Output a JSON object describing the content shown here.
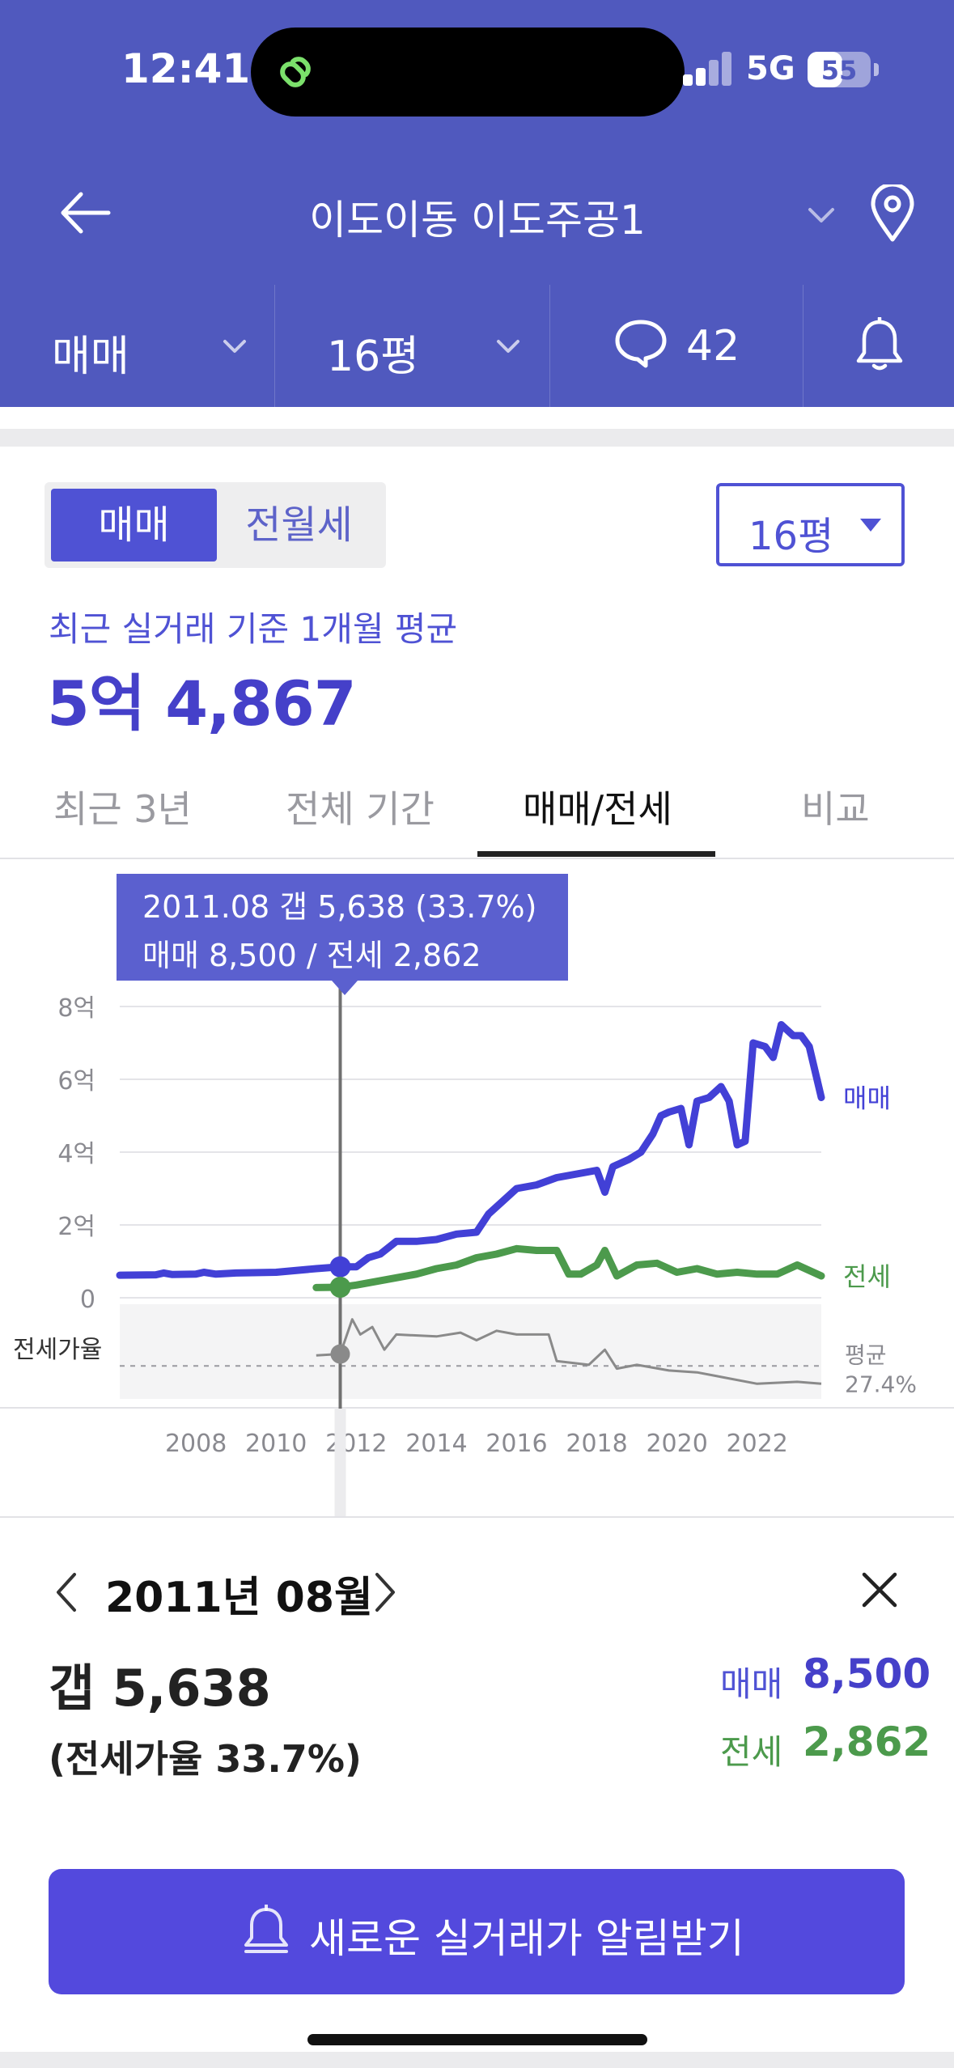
{
  "status_bar": {
    "time": "12:41",
    "network": "5G",
    "battery": "55"
  },
  "header": {
    "title": "이도이동 이도주공1"
  },
  "sub_bar": {
    "trade_type": "매매",
    "size": "16평",
    "comment_count": "42"
  },
  "summary": {
    "toggle": {
      "active": "매매",
      "inactive": "전월세"
    },
    "size_select": "16평",
    "recent_label": "최근 실거래 기준 1개월 평균",
    "recent_price": "5억 4,867"
  },
  "tabs": [
    {
      "label": "최근 3년"
    },
    {
      "label": "전체 기간"
    },
    {
      "label": "매매/전세"
    },
    {
      "label": "비교"
    }
  ],
  "tooltip": {
    "line1": "2011.08  갭 5,638 (33.7%)",
    "line2": "매매 8,500 / 전세 2,862"
  },
  "chart_data": {
    "type": "line",
    "x_ticks": [
      "2008",
      "2010",
      "2012",
      "2014",
      "2016",
      "2018",
      "2020",
      "2022"
    ],
    "y_ticks": [
      "8억",
      "6억",
      "4억",
      "2억",
      "0"
    ],
    "ylim": [
      0,
      8
    ],
    "xlim": [
      2006.1,
      2023.6
    ],
    "ratio_label": "전세가율",
    "avg_label": "평균",
    "avg_value": "27.4%",
    "avg_ratio": 27.4,
    "selected_x": 2011.6,
    "series": [
      {
        "name": "매매",
        "color": "#4240d6",
        "points": [
          [
            2006.1,
            0.62
          ],
          [
            2007.0,
            0.63
          ],
          [
            2007.2,
            0.68
          ],
          [
            2007.4,
            0.64
          ],
          [
            2008.0,
            0.65
          ],
          [
            2008.2,
            0.7
          ],
          [
            2008.5,
            0.65
          ],
          [
            2009.0,
            0.68
          ],
          [
            2010.0,
            0.7
          ],
          [
            2011.0,
            0.8
          ],
          [
            2011.6,
            0.85
          ],
          [
            2012.0,
            0.85
          ],
          [
            2012.3,
            1.1
          ],
          [
            2012.6,
            1.2
          ],
          [
            2013.0,
            1.55
          ],
          [
            2013.5,
            1.55
          ],
          [
            2014.0,
            1.6
          ],
          [
            2014.5,
            1.75
          ],
          [
            2015.0,
            1.8
          ],
          [
            2015.3,
            2.3
          ],
          [
            2015.6,
            2.6
          ],
          [
            2016.0,
            3.0
          ],
          [
            2016.5,
            3.1
          ],
          [
            2017.0,
            3.3
          ],
          [
            2017.5,
            3.4
          ],
          [
            2018.0,
            3.5
          ],
          [
            2018.2,
            2.9
          ],
          [
            2018.4,
            3.6
          ],
          [
            2018.8,
            3.8
          ],
          [
            2019.1,
            4.0
          ],
          [
            2019.4,
            4.5
          ],
          [
            2019.6,
            5.0
          ],
          [
            2019.8,
            5.1
          ],
          [
            2020.1,
            5.2
          ],
          [
            2020.3,
            4.2
          ],
          [
            2020.5,
            5.4
          ],
          [
            2020.8,
            5.5
          ],
          [
            2021.1,
            5.8
          ],
          [
            2021.3,
            5.4
          ],
          [
            2021.5,
            4.2
          ],
          [
            2021.7,
            4.3
          ],
          [
            2021.9,
            7.0
          ],
          [
            2022.2,
            6.9
          ],
          [
            2022.4,
            6.6
          ],
          [
            2022.6,
            7.5
          ],
          [
            2022.9,
            7.2
          ],
          [
            2023.1,
            7.2
          ],
          [
            2023.3,
            6.9
          ],
          [
            2023.6,
            5.5
          ]
        ]
      },
      {
        "name": "전세",
        "color": "#4c9a4c",
        "points": [
          [
            2011.0,
            0.28
          ],
          [
            2011.6,
            0.29
          ],
          [
            2012.0,
            0.35
          ],
          [
            2012.5,
            0.45
          ],
          [
            2013.0,
            0.55
          ],
          [
            2013.5,
            0.65
          ],
          [
            2014.0,
            0.8
          ],
          [
            2014.5,
            0.9
          ],
          [
            2015.0,
            1.1
          ],
          [
            2015.5,
            1.2
          ],
          [
            2016.0,
            1.35
          ],
          [
            2016.5,
            1.3
          ],
          [
            2017.0,
            1.3
          ],
          [
            2017.3,
            0.65
          ],
          [
            2017.6,
            0.65
          ],
          [
            2018.0,
            0.9
          ],
          [
            2018.2,
            1.3
          ],
          [
            2018.5,
            0.6
          ],
          [
            2019.0,
            0.9
          ],
          [
            2019.5,
            0.95
          ],
          [
            2020.0,
            0.7
          ],
          [
            2020.5,
            0.8
          ],
          [
            2021.0,
            0.65
          ],
          [
            2021.5,
            0.7
          ],
          [
            2022.0,
            0.65
          ],
          [
            2022.5,
            0.65
          ],
          [
            2023.0,
            0.9
          ],
          [
            2023.6,
            0.6
          ]
        ]
      },
      {
        "name": "전세가율",
        "color": "#8a8a8a",
        "points": [
          [
            2011.0,
            33
          ],
          [
            2011.6,
            33.7
          ],
          [
            2011.9,
            52
          ],
          [
            2012.1,
            44
          ],
          [
            2012.4,
            48
          ],
          [
            2012.7,
            36
          ],
          [
            2013.0,
            44
          ],
          [
            2014.0,
            43
          ],
          [
            2014.6,
            45
          ],
          [
            2015.0,
            41
          ],
          [
            2015.5,
            46
          ],
          [
            2016.0,
            44
          ],
          [
            2016.8,
            44
          ],
          [
            2017.0,
            30
          ],
          [
            2017.8,
            28
          ],
          [
            2018.2,
            36
          ],
          [
            2018.5,
            26
          ],
          [
            2019.0,
            28
          ],
          [
            2019.8,
            25
          ],
          [
            2020.5,
            24
          ],
          [
            2021.0,
            22
          ],
          [
            2022.0,
            18
          ],
          [
            2023.0,
            19
          ],
          [
            2023.6,
            18
          ]
        ]
      }
    ]
  },
  "detail": {
    "month": "2011년 08월",
    "gap": "갭 5,638",
    "ratio": "(전세가율 33.7%)",
    "buy_label": "매매",
    "buy_value": "8,500",
    "jeonse_label": "전세",
    "jeonse_value": "2,862"
  },
  "alert_button": {
    "label": "새로운 실거래가 알림받기"
  },
  "colors": {
    "header_bg": "#5059be",
    "accent": "#4f52d4",
    "buy": "#4240d6",
    "jeonse": "#4c9a4c",
    "ratio": "#8a8a8a"
  }
}
